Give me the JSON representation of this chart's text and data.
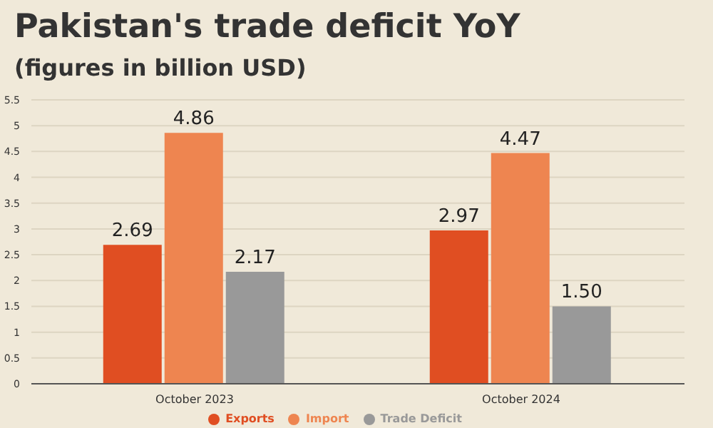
{
  "chart_data": {
    "type": "bar",
    "title": "Pakistan's trade deficit YoY",
    "subtitle": "(figures in billion USD)",
    "categories": [
      "October 2023",
      "October 2024"
    ],
    "series": [
      {
        "name": "Exports",
        "color": "#e04e22",
        "values": [
          2.69,
          2.97
        ],
        "value_labels": [
          "2.69",
          "2.97"
        ]
      },
      {
        "name": "Import",
        "color": "#ee8550",
        "values": [
          4.86,
          4.47
        ],
        "value_labels": [
          "4.86",
          "4.47"
        ]
      },
      {
        "name": "Trade Deficit",
        "color": "#999999",
        "values": [
          2.17,
          1.5
        ],
        "value_labels": [
          "2.17",
          "1.50"
        ]
      }
    ],
    "ylim": [
      0,
      5.5
    ],
    "yticks": [
      0,
      0.5,
      1,
      1.5,
      2,
      2.5,
      3,
      3.5,
      4,
      4.5,
      5,
      5.5
    ],
    "grid": "y",
    "legend": "bottom"
  }
}
